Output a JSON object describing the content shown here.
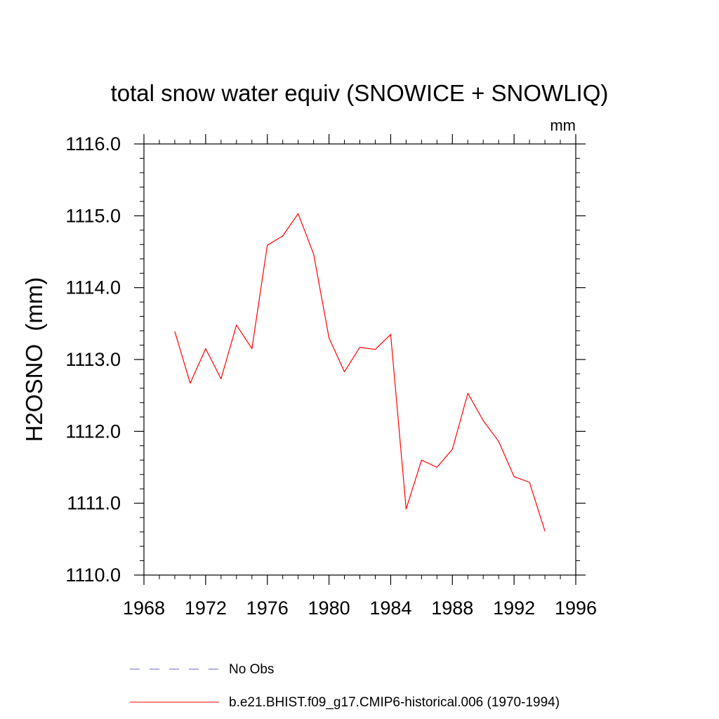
{
  "chart_data": {
    "type": "line",
    "title": "total snow water equiv (SNOWICE + SNOWLIQ)",
    "units": "mm",
    "ylabel": "H2OSNO  (mm)",
    "xlabel": "",
    "xlim": [
      1968,
      1996
    ],
    "ylim": [
      1110.0,
      1116.0
    ],
    "x_major_ticks": [
      1968,
      1972,
      1976,
      1980,
      1984,
      1988,
      1992,
      1996
    ],
    "x_tick_labels": [
      "1968",
      "1972",
      "1976",
      "1980",
      "1984",
      "1988",
      "1992",
      "1996"
    ],
    "y_major_ticks": [
      1110.0,
      1111.0,
      1112.0,
      1113.0,
      1114.0,
      1115.0,
      1116.0
    ],
    "y_tick_labels": [
      "1110.0",
      "1111.0",
      "1112.0",
      "1113.0",
      "1114.0",
      "1115.0",
      "1116.0"
    ],
    "grid": false,
    "legend_position": "bottom",
    "series": [
      {
        "name": "b.e21.BHIST.f09_g17.CMIP6-historical.006 (1970-1994)",
        "color": "#ff0000",
        "style": "solid",
        "x": [
          1970,
          1971,
          1972,
          1973,
          1974,
          1975,
          1976,
          1977,
          1978,
          1979,
          1980,
          1981,
          1982,
          1983,
          1984,
          1985,
          1986,
          1987,
          1988,
          1989,
          1990,
          1991,
          1992,
          1993,
          1994
        ],
        "y": [
          1113.39,
          1112.67,
          1113.15,
          1112.73,
          1113.48,
          1113.15,
          1114.59,
          1114.72,
          1115.03,
          1114.47,
          1113.3,
          1112.83,
          1113.17,
          1113.14,
          1113.35,
          1110.92,
          1111.6,
          1111.5,
          1111.75,
          1112.53,
          1112.15,
          1111.86,
          1111.37,
          1111.29,
          1110.61
        ]
      }
    ],
    "legend": [
      {
        "label": "No Obs",
        "color": "#6666cc",
        "style": "dashed"
      },
      {
        "label": "b.e21.BHIST.f09_g17.CMIP6-historical.006 (1970-1994)",
        "color": "#ff0000",
        "style": "solid"
      }
    ]
  }
}
